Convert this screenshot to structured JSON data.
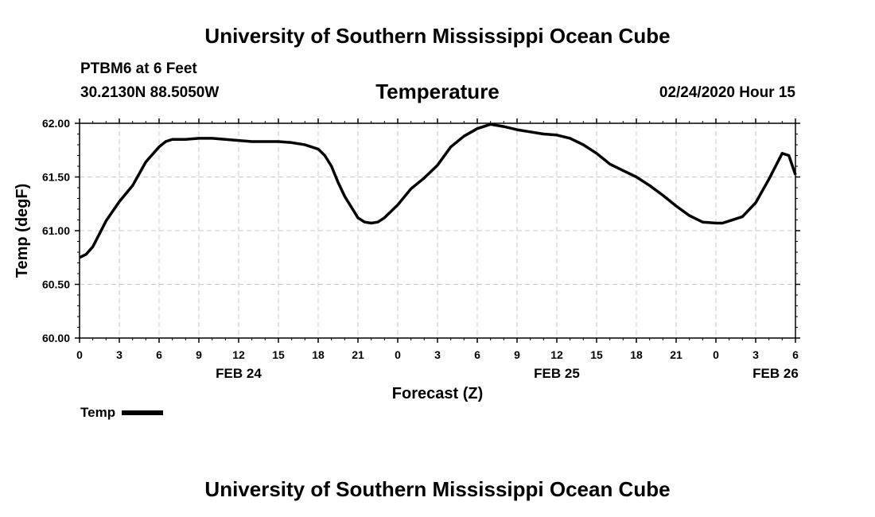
{
  "header": {
    "title": "University of Southern Mississippi Ocean Cube",
    "station": "PTBM6 at 6 Feet",
    "coords": "30.2130N 88.5050W",
    "subtitle": "Temperature",
    "datetime": "02/24/2020 Hour 15"
  },
  "footer": {
    "title": "University of Southern Mississippi Ocean Cube"
  },
  "legend": {
    "label": "Temp"
  },
  "chart_data": {
    "type": "line",
    "title": "Temperature",
    "xlabel": "Forecast (Z)",
    "ylabel": "Temp (degF)",
    "ylim": [
      60.0,
      62.0
    ],
    "xlim": [
      0,
      54
    ],
    "grid": true,
    "legend": "bottom-left",
    "color": "#000000",
    "yticks": [
      "60.00",
      "60.50",
      "61.00",
      "61.50",
      "62.00"
    ],
    "xticks": [
      {
        "h": 0,
        "label": "0"
      },
      {
        "h": 3,
        "label": "3"
      },
      {
        "h": 6,
        "label": "6"
      },
      {
        "h": 9,
        "label": "9"
      },
      {
        "h": 12,
        "label": "12"
      },
      {
        "h": 15,
        "label": "15"
      },
      {
        "h": 18,
        "label": "18"
      },
      {
        "h": 21,
        "label": "21"
      },
      {
        "h": 24,
        "label": "0"
      },
      {
        "h": 27,
        "label": "3"
      },
      {
        "h": 30,
        "label": "6"
      },
      {
        "h": 33,
        "label": "9"
      },
      {
        "h": 36,
        "label": "12"
      },
      {
        "h": 39,
        "label": "15"
      },
      {
        "h": 42,
        "label": "18"
      },
      {
        "h": 45,
        "label": "21"
      },
      {
        "h": 48,
        "label": "0"
      },
      {
        "h": 51,
        "label": "3"
      },
      {
        "h": 54,
        "label": "6"
      }
    ],
    "date_labels": [
      {
        "h": 12,
        "label": "FEB 24"
      },
      {
        "h": 36,
        "label": "FEB 25"
      },
      {
        "h": 52.5,
        "label": "FEB 26"
      }
    ],
    "series": [
      {
        "name": "Temp",
        "x": [
          0,
          0.5,
          1,
          1.5,
          2,
          3,
          4,
          5,
          6,
          6.5,
          7,
          8,
          9,
          10,
          11,
          12,
          13,
          14,
          15,
          16,
          17,
          18,
          18.5,
          19,
          19.5,
          20,
          21,
          21.5,
          22,
          22.5,
          23,
          24,
          25,
          26,
          27,
          28,
          29,
          30,
          31,
          32,
          33,
          34,
          35,
          36,
          37,
          38,
          39,
          40,
          41,
          42,
          43,
          44,
          45,
          46,
          47,
          48,
          48.5,
          49,
          50,
          51,
          52,
          53,
          53.5,
          54
        ],
        "y": [
          60.75,
          60.78,
          60.85,
          60.97,
          61.09,
          61.27,
          61.42,
          61.64,
          61.78,
          61.83,
          61.85,
          61.85,
          61.86,
          61.86,
          61.85,
          61.84,
          61.83,
          61.83,
          61.83,
          61.82,
          61.8,
          61.76,
          61.7,
          61.6,
          61.45,
          61.32,
          61.12,
          61.08,
          61.07,
          61.08,
          61.12,
          61.24,
          61.39,
          61.49,
          61.61,
          61.78,
          61.88,
          61.95,
          61.99,
          61.97,
          61.94,
          61.92,
          61.9,
          61.89,
          61.86,
          61.8,
          61.72,
          61.62,
          61.56,
          61.5,
          61.42,
          61.33,
          61.23,
          61.14,
          61.08,
          61.07,
          61.07,
          61.09,
          61.13,
          61.26,
          61.48,
          61.72,
          61.7,
          61.52
        ]
      }
    ]
  }
}
